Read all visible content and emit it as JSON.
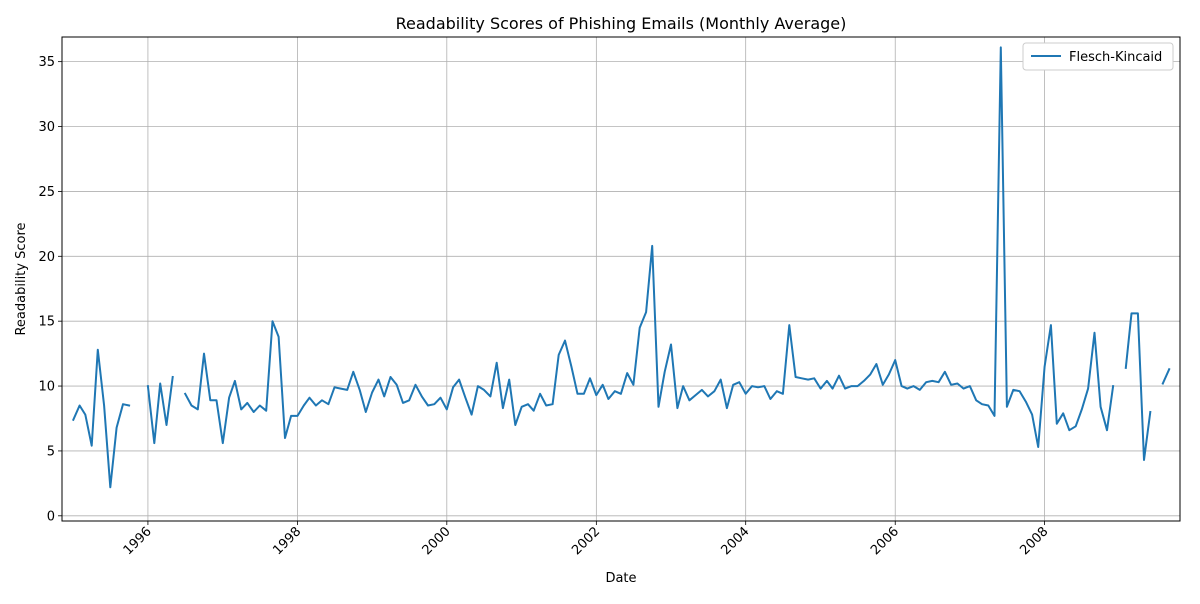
{
  "chart_data": {
    "type": "line",
    "title": "Readability Scores of Phishing Emails (Monthly Average)",
    "xlabel": "Date",
    "ylabel": "Readability Score",
    "xlim": [
      "1994-11-07",
      "2009-10-24"
    ],
    "ylim": [
      -0.4,
      36.9
    ],
    "x_ticks": [
      "1996-01-01",
      "1998-01-01",
      "2000-01-01",
      "2002-01-01",
      "2004-01-01",
      "2006-01-01",
      "2008-01-01"
    ],
    "x_tick_labels": [
      "1996",
      "1998",
      "2000",
      "2002",
      "2004",
      "2006",
      "2008"
    ],
    "y_ticks": [
      0,
      5,
      10,
      15,
      20,
      25,
      30,
      35
    ],
    "y_tick_labels": [
      "0",
      "5",
      "10",
      "15",
      "20",
      "25",
      "30",
      "35"
    ],
    "grid": true,
    "legend_position": "top-right",
    "line_color": "#1f77b4",
    "series": [
      {
        "name": "Flesch-Kincaid",
        "x_start": "1995-01",
        "frequency": "monthly",
        "values": [
          7.4,
          8.5,
          7.8,
          5.4,
          12.8,
          8.5,
          2.2,
          6.8,
          8.6,
          8.5,
          null,
          null,
          10.0,
          5.6,
          10.2,
          7.0,
          10.7,
          null,
          9.4,
          8.5,
          8.2,
          12.5,
          8.9,
          8.9,
          5.6,
          9.1,
          10.4,
          8.2,
          8.7,
          8.0,
          8.5,
          8.1,
          15.0,
          13.8,
          6.0,
          7.7,
          7.7,
          8.5,
          9.1,
          8.5,
          8.9,
          8.6,
          9.9,
          9.8,
          9.7,
          11.1,
          9.7,
          8.0,
          9.5,
          10.5,
          9.2,
          10.7,
          10.1,
          8.7,
          8.9,
          10.1,
          9.2,
          8.5,
          8.6,
          9.1,
          8.2,
          9.9,
          10.5,
          9.1,
          7.8,
          10.0,
          9.7,
          9.2,
          11.8,
          8.3,
          10.5,
          7.0,
          8.4,
          8.6,
          8.1,
          9.4,
          8.5,
          8.6,
          12.4,
          13.5,
          11.5,
          9.4,
          9.4,
          10.6,
          9.3,
          10.1,
          9.0,
          9.6,
          9.4,
          11.0,
          10.1,
          14.5,
          15.7,
          20.8,
          8.4,
          11.1,
          13.2,
          8.3,
          10.0,
          8.9,
          9.3,
          9.7,
          9.2,
          9.6,
          10.5,
          8.3,
          10.1,
          10.3,
          9.4,
          10.0,
          9.9,
          10.0,
          9.0,
          9.6,
          9.4,
          14.7,
          10.7,
          10.6,
          10.5,
          10.6,
          9.8,
          10.4,
          9.8,
          10.8,
          9.8,
          10.0,
          10.0,
          10.4,
          10.9,
          11.7,
          10.1,
          10.9,
          12.0,
          10.0,
          9.8,
          10.0,
          9.7,
          10.3,
          10.4,
          10.3,
          11.1,
          10.1,
          10.2,
          9.8,
          10.0,
          8.9,
          8.6,
          8.5,
          7.7,
          36.1,
          8.4,
          9.7,
          9.6,
          8.8,
          7.8,
          5.3,
          11.5,
          14.7,
          7.1,
          7.9,
          6.6,
          6.9,
          8.2,
          9.8,
          14.1,
          8.4,
          6.6,
          10.0,
          null,
          11.4,
          15.6,
          15.6,
          4.3,
          8.0,
          null,
          10.2,
          11.3
        ]
      }
    ]
  }
}
